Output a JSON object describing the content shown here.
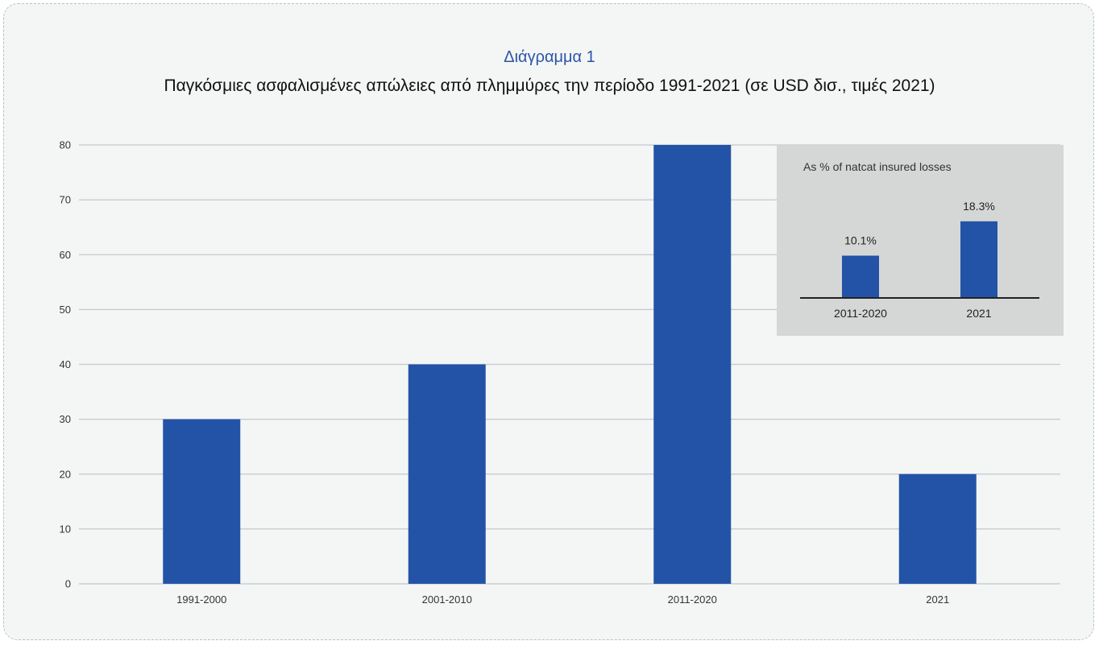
{
  "header": {
    "chart_number": "Διάγραμμα 1",
    "subtitle": "Παγκόσμιες ασφαλισμένες απώλειες από πλημμύρες την περίοδο 1991-2021 (σε USD δισ., τιμές 2021)"
  },
  "colors": {
    "bar": "#2353a6",
    "grid": "#c4c8cc",
    "inset_bg": "#d5d6d6",
    "background": "#f4f6f5"
  },
  "chart_data": [
    {
      "type": "bar",
      "categories": [
        "1991-2000",
        "2001-2010",
        "2011-2020",
        "2021"
      ],
      "values": [
        30,
        40,
        80,
        20
      ],
      "ylim": [
        0,
        80
      ],
      "yticks": [
        0,
        10,
        20,
        30,
        40,
        50,
        60,
        70,
        80
      ],
      "grid": true,
      "title": "",
      "xlabel": "",
      "ylabel": ""
    },
    {
      "type": "bar",
      "title": "As % of natcat insured losses",
      "categories": [
        "2011-2020",
        "2021"
      ],
      "values": [
        10.1,
        18.3
      ],
      "data_labels": [
        "10.1%",
        "18.3%"
      ],
      "ylim": [
        0,
        20
      ],
      "grid": false,
      "placement": "top-right inset"
    }
  ]
}
